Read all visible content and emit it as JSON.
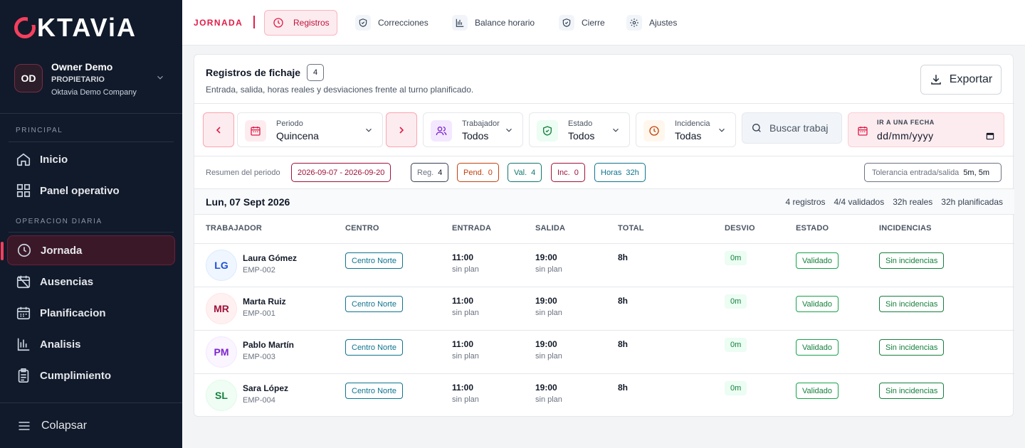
{
  "brand": {
    "name_rest": "KTAViA",
    "accent": "#f43f5e",
    "sidebar_bg": "#111a2a"
  },
  "user": {
    "initials": "OD",
    "name": "Owner Demo",
    "role": "PROPIETARIO",
    "company": "Oktavia Demo Company"
  },
  "sidebar": {
    "section_principal": "PRINCIPAL",
    "section_operacion": "OPERACION DIARIA",
    "items": [
      {
        "label": "Inicio",
        "icon": "home-icon"
      },
      {
        "label": "Panel operativo",
        "icon": "grid-icon"
      },
      {
        "label": "Jornada",
        "icon": "clock-icon",
        "active": true
      },
      {
        "label": "Ausencias",
        "icon": "calendar-off-icon"
      },
      {
        "label": "Planificacion",
        "icon": "calendar-icon"
      },
      {
        "label": "Analisis",
        "icon": "chart-icon"
      },
      {
        "label": "Cumplimiento",
        "icon": "clipboard-icon"
      }
    ],
    "collapse_label": "Colapsar"
  },
  "topbar": {
    "section": "JORNADA",
    "tabs": [
      {
        "label": "Registros",
        "icon": "clock-icon",
        "active": true
      },
      {
        "label": "Correcciones",
        "icon": "shield-icon"
      },
      {
        "label": "Balance horario",
        "icon": "chart-icon"
      },
      {
        "label": "Cierre",
        "icon": "shield-icon"
      },
      {
        "label": "Ajustes",
        "icon": "gear-icon"
      }
    ]
  },
  "card": {
    "title": "Registros de fichaje",
    "count": "4",
    "subtitle": "Entrada, salida, horas reales y desviaciones frente al turno planificado.",
    "export_label": "Exportar"
  },
  "filters": {
    "periodo": {
      "label": "Periodo",
      "value": "Quincena"
    },
    "trabajador": {
      "label": "Trabajador",
      "value": "Todos"
    },
    "estado": {
      "label": "Estado",
      "value": "Todos"
    },
    "incidencia": {
      "label": "Incidencia",
      "value": "Todas"
    },
    "search_placeholder": "Buscar trabaj",
    "date_label": "IR A UNA FECHA",
    "date_value": "dd/mm/yyyy"
  },
  "summary": {
    "label": "Resumen del periodo",
    "range": "2026-09-07 - 2026-09-20",
    "reg": {
      "k": "Reg.",
      "v": "4"
    },
    "pend": {
      "k": "Pend.",
      "v": "0"
    },
    "val": {
      "k": "Val.",
      "v": "4"
    },
    "inc": {
      "k": "Inc.",
      "v": "0"
    },
    "horas": {
      "k": "Horas",
      "v": "32h"
    },
    "tolerance": {
      "k": "Tolerancia entrada/salida",
      "v": "5m, 5m"
    }
  },
  "day": {
    "title": "Lun, 07 Sept 2026",
    "stats": [
      "4 registros",
      "4/4 validados",
      "32h reales",
      "32h planificadas"
    ]
  },
  "table": {
    "headers": [
      "TRABAJADOR",
      "CENTRO",
      "ENTRADA",
      "SALIDA",
      "TOTAL",
      "DESVIO",
      "ESTADO",
      "INCIDENCIAS"
    ],
    "rows": [
      {
        "initials": "LG",
        "name": "Laura Gómez",
        "code": "EMP-002",
        "centro": "Centro Norte",
        "entrada": "11:00",
        "entrada_sub": "sin plan",
        "salida": "19:00",
        "salida_sub": "sin plan",
        "total": "8h",
        "desvio": "0m",
        "estado": "Validado",
        "incidencias": "Sin incidencias"
      },
      {
        "initials": "MR",
        "name": "Marta Ruiz",
        "code": "EMP-001",
        "centro": "Centro Norte",
        "entrada": "11:00",
        "entrada_sub": "sin plan",
        "salida": "19:00",
        "salida_sub": "sin plan",
        "total": "8h",
        "desvio": "0m",
        "estado": "Validado",
        "incidencias": "Sin incidencias"
      },
      {
        "initials": "PM",
        "name": "Pablo Martín",
        "code": "EMP-003",
        "centro": "Centro Norte",
        "entrada": "11:00",
        "entrada_sub": "sin plan",
        "salida": "19:00",
        "salida_sub": "sin plan",
        "total": "8h",
        "desvio": "0m",
        "estado": "Validado",
        "incidencias": "Sin incidencias"
      },
      {
        "initials": "SL",
        "name": "Sara López",
        "code": "EMP-004",
        "centro": "Centro Norte",
        "entrada": "11:00",
        "entrada_sub": "sin plan",
        "salida": "19:00",
        "salida_sub": "sin plan",
        "total": "8h",
        "desvio": "0m",
        "estado": "Validado",
        "incidencias": "Sin incidencias"
      }
    ]
  }
}
